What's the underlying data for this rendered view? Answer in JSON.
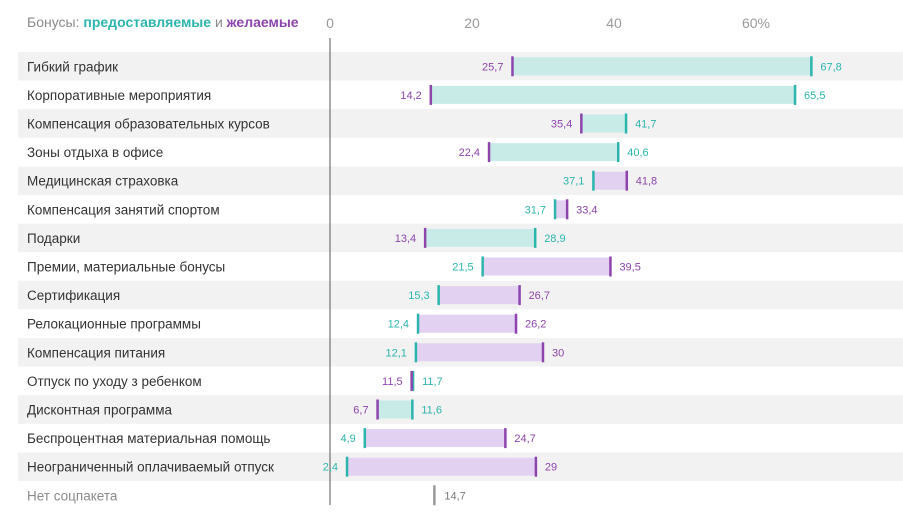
{
  "legend": {
    "prefix": "Бонусы: ",
    "provided": "предоставляемые",
    "and": " и ",
    "desired": "желаемые"
  },
  "colors": {
    "provided": "#2bb5ad",
    "provided_fill": "#c8ebe8",
    "desired": "#8e44ad",
    "desired_fill": "#e2d1f0",
    "neutral": "#9a9a9a",
    "row_band": "#f2f2f2",
    "tick_text": "#9a9a9a"
  },
  "chart_data": {
    "type": "range-bar",
    "x_axis": {
      "ticks": [
        0,
        20,
        40,
        60
      ],
      "tick_labels": [
        "0",
        "20",
        "40",
        "60%"
      ],
      "unit": "%"
    },
    "series": [
      {
        "name": "предоставляемые",
        "key": "provided"
      },
      {
        "name": "желаемые",
        "key": "desired"
      }
    ],
    "rows": [
      {
        "label": "Гибкий график",
        "provided": 67.8,
        "desired": 25.7,
        "provided_label": "67,8",
        "desired_label": "25,7"
      },
      {
        "label": "Корпоративные мероприятия",
        "provided": 65.5,
        "desired": 14.2,
        "provided_label": "65,5",
        "desired_label": "14,2"
      },
      {
        "label": "Компенсация образовательных курсов",
        "provided": 41.7,
        "desired": 35.4,
        "provided_label": "41,7",
        "desired_label": "35,4"
      },
      {
        "label": "Зоны отдыха в офисе",
        "provided": 40.6,
        "desired": 22.4,
        "provided_label": "40,6",
        "desired_label": "22,4"
      },
      {
        "label": "Медицинская страховка",
        "provided": 37.1,
        "desired": 41.8,
        "provided_label": "37,1",
        "desired_label": "41,8"
      },
      {
        "label": "Компенсация занятий спортом",
        "provided": 31.7,
        "desired": 33.4,
        "provided_label": "31,7",
        "desired_label": "33,4"
      },
      {
        "label": "Подарки",
        "provided": 28.9,
        "desired": 13.4,
        "provided_label": "28,9",
        "desired_label": "13,4"
      },
      {
        "label": "Премии, материальные бонусы",
        "provided": 21.5,
        "desired": 39.5,
        "provided_label": "21,5",
        "desired_label": "39,5"
      },
      {
        "label": "Сертификация",
        "provided": 15.3,
        "desired": 26.7,
        "provided_label": "15,3",
        "desired_label": "26,7"
      },
      {
        "label": "Релокационные программы",
        "provided": 12.4,
        "desired": 26.2,
        "provided_label": "12,4",
        "desired_label": "26,2"
      },
      {
        "label": "Компенсация питания",
        "provided": 12.1,
        "desired": 30,
        "provided_label": "12,1",
        "desired_label": "30"
      },
      {
        "label": "Отпуск по уходу з ребенком",
        "provided": 11.7,
        "desired": 11.5,
        "provided_label": "11,7",
        "desired_label": "11,5"
      },
      {
        "label": "Дисконтная программа",
        "provided": 11.6,
        "desired": 6.7,
        "provided_label": "11,6",
        "desired_label": "6,7"
      },
      {
        "label": "Беспроцентная материальная помощь",
        "provided": 4.9,
        "desired": 24.7,
        "provided_label": "4,9",
        "desired_label": "24,7"
      },
      {
        "label": "Неограниченный оплачиваемый отпуск",
        "provided": 2.4,
        "desired": 29,
        "provided_label": "2,4",
        "desired_label": "29"
      },
      {
        "label": "Нет соцпакета",
        "provided": null,
        "desired": null,
        "single": 14.7,
        "single_label": "14,7"
      }
    ]
  }
}
